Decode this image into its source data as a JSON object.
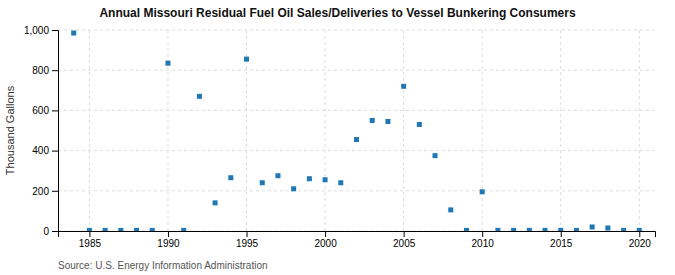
{
  "chart_data": {
    "type": "scatter",
    "title": "Annual Missouri Residual Fuel Oil Sales/Deliveries to Vessel Bunkering Consumers",
    "y_label": "Thousand Gallons",
    "source": "Source: U.S. Energy Information Administration",
    "x": [
      1984,
      1985,
      1986,
      1987,
      1988,
      1989,
      1990,
      1991,
      1992,
      1993,
      1994,
      1995,
      1996,
      1997,
      1998,
      1999,
      2000,
      2001,
      2002,
      2003,
      2004,
      2005,
      2006,
      2007,
      2008,
      2009,
      2010,
      2011,
      2012,
      2013,
      2014,
      2015,
      2016,
      2017,
      2018,
      2019,
      2020
    ],
    "values": [
      985,
      3,
      3,
      3,
      3,
      3,
      835,
      3,
      670,
      140,
      265,
      855,
      240,
      275,
      210,
      260,
      255,
      240,
      455,
      550,
      545,
      720,
      530,
      375,
      105,
      3,
      195,
      3,
      3,
      3,
      3,
      3,
      3,
      20,
      15,
      3,
      3
    ],
    "xlim": [
      1983,
      2021
    ],
    "xticks": [
      1985,
      1990,
      1995,
      2000,
      2005,
      2010,
      2015,
      2020
    ],
    "ylim": [
      0,
      1000
    ],
    "yticks": [
      0,
      200,
      400,
      600,
      800,
      {
        "value": 1000,
        "label": "1,000"
      }
    ],
    "grid": true,
    "marker": "square"
  }
}
